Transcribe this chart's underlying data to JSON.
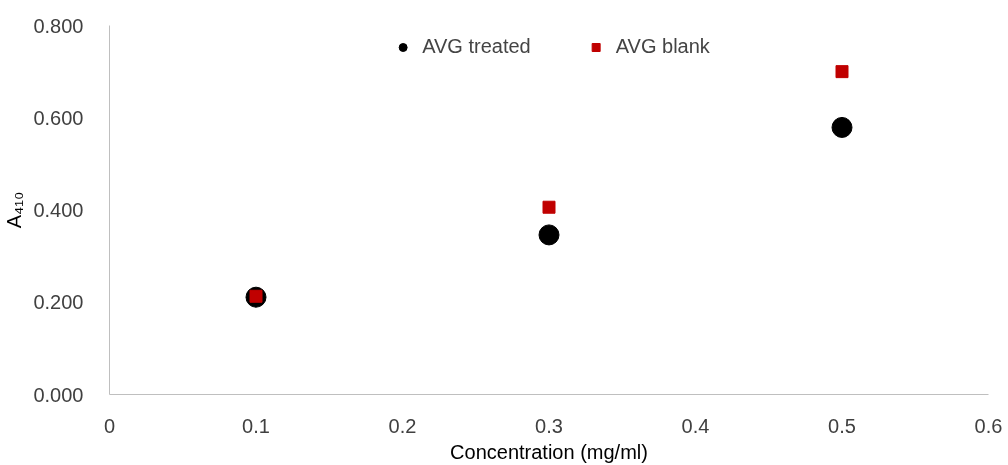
{
  "chart_data": {
    "type": "scatter",
    "xlabel": "Concentration (mg/ml)",
    "ylabel": "A₄₁₀",
    "x": [
      0.1,
      0.3,
      0.5
    ],
    "series": [
      {
        "name": "AVG treated",
        "color": "#000000",
        "marker": "circle",
        "values": [
          0.211,
          0.346,
          0.579
        ]
      },
      {
        "name": "AVG blank",
        "color": "#c00000",
        "marker": "square",
        "values": [
          0.213,
          0.406,
          0.7
        ]
      }
    ],
    "xlim": [
      0,
      0.6
    ],
    "xticks": [
      0,
      0.1,
      0.2,
      0.3,
      0.4,
      0.5,
      0.6
    ],
    "ylim": [
      0,
      0.8
    ],
    "yticks": [
      {
        "value": 0,
        "label": "0.000"
      },
      {
        "value": 0.2,
        "label": "0.200"
      },
      {
        "value": 0.4,
        "label": "0.400"
      },
      {
        "value": 0.6,
        "label": "0.600"
      },
      {
        "value": 0.8,
        "label": "0.800"
      }
    ],
    "grid": false,
    "legend": "top"
  }
}
